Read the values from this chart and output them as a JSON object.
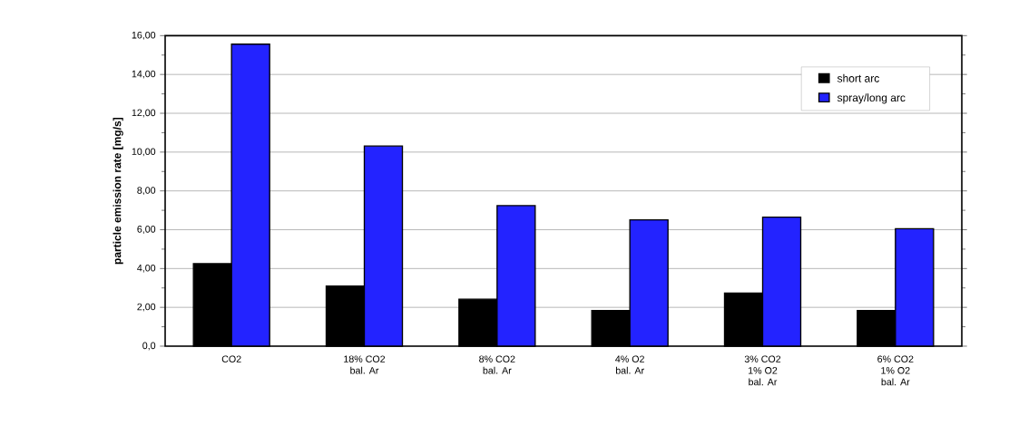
{
  "chart_data": {
    "type": "bar",
    "ylabel": "particle emission rate [mg/s]",
    "categories": [
      "CO2",
      "18% CO2\nbal. Ar",
      "8% CO2\nbal. Ar",
      "4% O2\nbal. Ar",
      "3% CO2\n1% O2\nbal. Ar",
      "6% CO2\n1% O2\nbal. Ar"
    ],
    "series": [
      {
        "name": "short arc",
        "color": "#000000",
        "values": [
          4.25,
          3.1,
          2.42,
          1.84,
          2.73,
          1.84
        ]
      },
      {
        "name": "spray/long arc",
        "color": "#2323ff",
        "values": [
          15.56,
          10.31,
          7.24,
          6.51,
          6.65,
          6.05
        ]
      }
    ],
    "ylim": [
      0,
      16
    ],
    "yticks": [
      {
        "value": 0,
        "label": "0,0"
      },
      {
        "value": 1,
        "label": null
      },
      {
        "value": 2,
        "label": "2,00"
      },
      {
        "value": 3,
        "label": null
      },
      {
        "value": 4,
        "label": "4,00"
      },
      {
        "value": 5,
        "label": null
      },
      {
        "value": 6,
        "label": "6,00"
      },
      {
        "value": 7,
        "label": null
      },
      {
        "value": 8,
        "label": "8,00"
      },
      {
        "value": 9,
        "label": null
      },
      {
        "value": 10,
        "label": "10,00"
      },
      {
        "value": 11,
        "label": null
      },
      {
        "value": 12,
        "label": "12,00"
      },
      {
        "value": 13,
        "label": null
      },
      {
        "value": 14,
        "label": "14,00"
      },
      {
        "value": 15,
        "label": null
      },
      {
        "value": 16,
        "label": "16,00"
      }
    ],
    "grid": "y",
    "legend": "top right"
  }
}
